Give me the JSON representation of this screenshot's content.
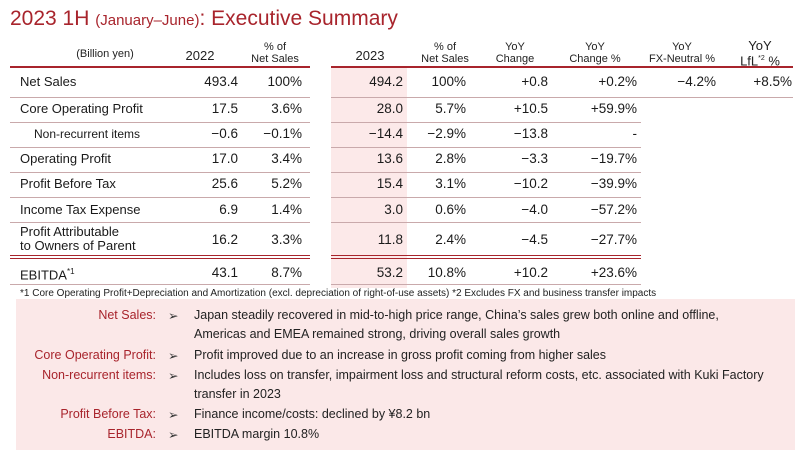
{
  "title": {
    "main": "2023 1H ",
    "paren": "(January–June)",
    "rest": ": Executive Summary"
  },
  "headers": {
    "unit": "(Billion yen)",
    "y2022": "2022",
    "pct2022_l1": "% of",
    "pct2022_l2": "Net Sales",
    "y2023": "2023",
    "pct2023_l1": "% of",
    "pct2023_l2": "Net Sales",
    "yoy_l1": "YoY",
    "yoy_l2": "Change",
    "yoyp_l1": "YoY",
    "yoyp_l2": "Change %",
    "fxn_l1": "YoY",
    "fxn_l2": "FX-Neutral %",
    "lfl_l1": "YoY",
    "lfl_l2": "LfL",
    "lfl_sup": "*2",
    "lfl_l2b": " %"
  },
  "rows": [
    {
      "label": "Net Sales",
      "v2022": "493.4",
      "p2022": "100%",
      "v2023": "494.2",
      "p2023": "100%",
      "yoy": "+0.8",
      "yoyp": "+0.2%",
      "fxn": "−4.2%",
      "lfl": "+8.5%"
    },
    {
      "label": "Core Operating Profit",
      "v2022": "17.5",
      "p2022": "3.6%",
      "v2023": "28.0",
      "p2023": "5.7%",
      "yoy": "+10.5",
      "yoyp": "+59.9%"
    },
    {
      "label": "Non-recurrent items",
      "v2022": "−0.6",
      "p2022": "−0.1%",
      "v2023": "−14.4",
      "p2023": "−2.9%",
      "yoy": "−13.8",
      "yoyp": "-"
    },
    {
      "label": "Operating Profit",
      "v2022": "17.0",
      "p2022": "3.4%",
      "v2023": "13.6",
      "p2023": "2.8%",
      "yoy": "−3.3",
      "yoyp": "−19.7%"
    },
    {
      "label": "Profit Before Tax",
      "v2022": "25.6",
      "p2022": "5.2%",
      "v2023": "15.4",
      "p2023": "3.1%",
      "yoy": "−10.2",
      "yoyp": "−39.9%"
    },
    {
      "label": "Income Tax Expense",
      "v2022": "6.9",
      "p2022": "1.4%",
      "v2023": "3.0",
      "p2023": "0.6%",
      "yoy": "−4.0",
      "yoyp": "−57.2%"
    },
    {
      "label_l1": "Profit Attributable",
      "label_l2": "to Owners of Parent",
      "v2022": "16.2",
      "p2022": "3.3%",
      "v2023": "11.8",
      "p2023": "2.4%",
      "yoy": "−4.5",
      "yoyp": "−27.7%"
    },
    {
      "label": "EBITDA",
      "label_sup": "*1",
      "v2022": "43.1",
      "p2022": "8.7%",
      "v2023": "53.2",
      "p2023": "10.8%",
      "yoy": "+10.2",
      "yoyp": "+23.6%"
    }
  ],
  "footnote": "*1 Core Operating Profit+Depreciation and Amortization (excl. depreciation of right-of-use assets)   *2 Excludes FX and business transfer impacts",
  "summary": [
    {
      "key": "Net Sales:",
      "arrow": "➢",
      "lines": [
        "Japan steadily recovered in mid-to-high price range, China’s sales grew both online and offline,",
        "Americas and EMEA remained strong, driving overall sales growth"
      ]
    },
    {
      "key": "Core Operating Profit:",
      "arrow": "➢",
      "lines": [
        "Profit improved due to an increase in gross profit coming from higher sales"
      ]
    },
    {
      "key": "Non-recurrent items:",
      "arrow": "➢",
      "lines": [
        "Includes loss on transfer, impairment loss and structural reform costs, etc. associated with Kuki Factory",
        "transfer in 2023"
      ]
    },
    {
      "key": "Profit Before Tax:",
      "arrow": "➢",
      "lines": [
        "Finance income/costs: declined by ¥8.2 bn"
      ]
    },
    {
      "key": "EBITDA:",
      "arrow": "➢",
      "lines": [
        "EBITDA margin 10.8%"
      ]
    }
  ],
  "colors": {
    "accent": "#a8242c",
    "highlight": "#fce9e9",
    "summary_bg": "#fbe8e8"
  }
}
